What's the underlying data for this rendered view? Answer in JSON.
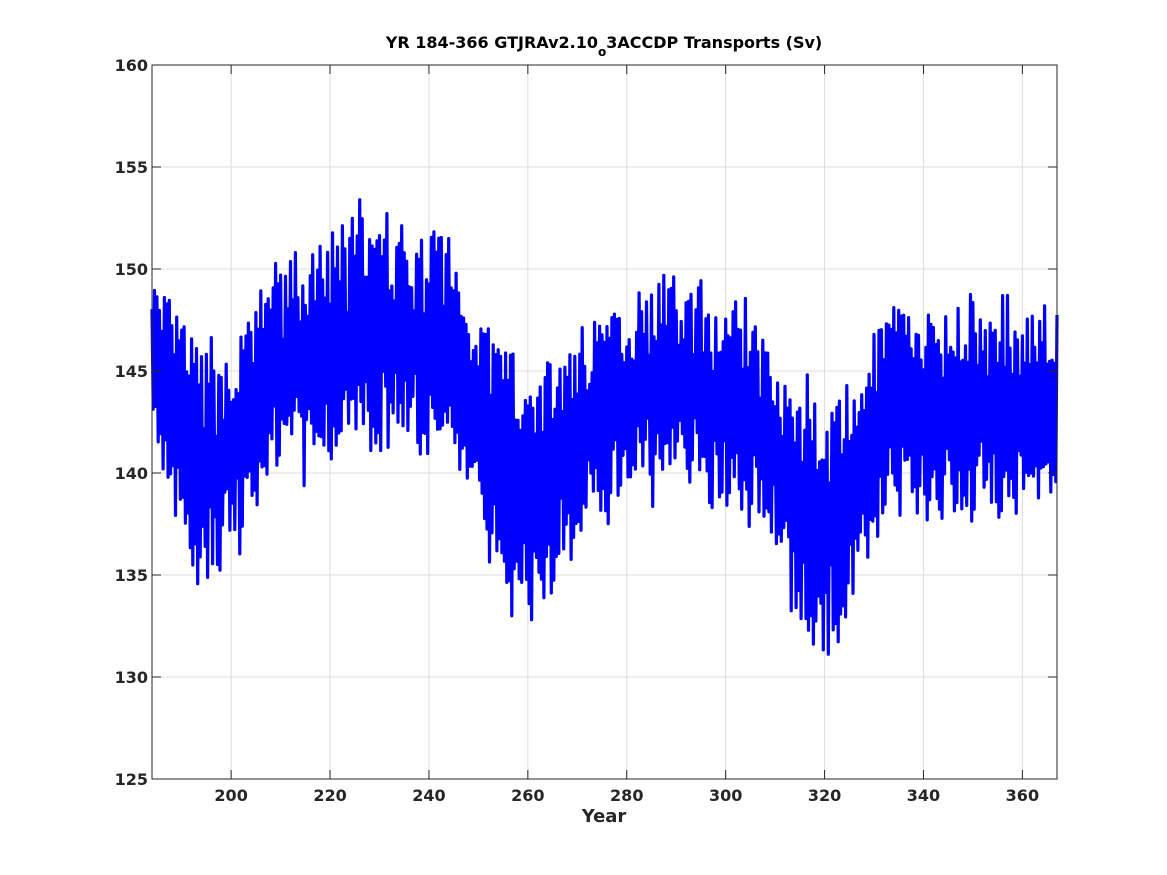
{
  "chart_data": {
    "type": "line",
    "title_main": "YR 184-366 GTJRAv2.10",
    "title_sub": "o",
    "title_rest": "3ACCDP Transports (Sv)",
    "xlabel": "Year",
    "ylabel": "",
    "xlim": [
      184,
      367
    ],
    "ylim": [
      125,
      160
    ],
    "xticks": [
      200,
      220,
      240,
      260,
      280,
      300,
      320,
      340,
      360
    ],
    "yticks": [
      125,
      130,
      135,
      140,
      145,
      150,
      155,
      160
    ],
    "grid": true,
    "line_color": "#0000ff",
    "series": [
      {
        "x": [
          184,
          186,
          188,
          190,
          192,
          194,
          196,
          198,
          200,
          202,
          204,
          206,
          208,
          210,
          212,
          214,
          216,
          218,
          220,
          222,
          224,
          226,
          228,
          230,
          232,
          234,
          236,
          238,
          240,
          242,
          244,
          246,
          248,
          250,
          252,
          254,
          256,
          258,
          260,
          262,
          264,
          266,
          268,
          270,
          272,
          274,
          276,
          278,
          280,
          282,
          284,
          286,
          288,
          290,
          292,
          294,
          296,
          298,
          300,
          302,
          304,
          306,
          308,
          310,
          312,
          314,
          316,
          318,
          320,
          322,
          324,
          326,
          328,
          330,
          332,
          334,
          336,
          338,
          340,
          342,
          344,
          346,
          348,
          350,
          352,
          354,
          356,
          358,
          360,
          362,
          364,
          366,
          367
        ],
        "values": [
          146.0,
          144.0,
          143.0,
          142.5,
          141.0,
          139.5,
          140.5,
          140.0,
          141.0,
          141.5,
          143.0,
          144.0,
          145.0,
          145.0,
          145.5,
          145.5,
          145.0,
          146.0,
          146.0,
          146.5,
          146.5,
          147.5,
          147.0,
          146.5,
          147.0,
          147.0,
          146.0,
          146.5,
          146.0,
          147.0,
          146.0,
          145.0,
          144.0,
          143.5,
          142.0,
          141.0,
          139.5,
          140.0,
          139.0,
          139.0,
          139.5,
          140.5,
          141.0,
          141.5,
          142.5,
          143.0,
          143.0,
          143.5,
          143.5,
          144.0,
          144.0,
          144.5,
          144.0,
          144.5,
          144.0,
          144.5,
          144.0,
          143.5,
          143.5,
          144.0,
          143.0,
          142.5,
          142.0,
          141.0,
          140.0,
          139.0,
          138.0,
          137.5,
          137.0,
          137.5,
          138.0,
          139.0,
          140.0,
          141.5,
          142.5,
          143.0,
          143.0,
          143.0,
          142.5,
          143.0,
          142.5,
          143.0,
          143.0,
          143.5,
          143.0,
          142.5,
          143.0,
          143.0,
          143.0,
          143.0,
          143.5,
          143.0,
          143.0
        ],
        "amplitude": [
          4.0,
          4.5,
          5.0,
          5.5,
          6.0,
          6.5,
          6.0,
          5.5,
          5.5,
          5.0,
          5.0,
          5.0,
          5.5,
          5.0,
          5.0,
          5.5,
          5.0,
          5.5,
          5.5,
          5.5,
          5.5,
          6.0,
          5.5,
          5.5,
          5.5,
          5.5,
          5.5,
          5.5,
          5.5,
          5.5,
          5.5,
          5.0,
          5.0,
          5.0,
          5.5,
          6.0,
          6.5,
          6.5,
          6.5,
          6.5,
          6.0,
          5.5,
          5.5,
          5.5,
          5.0,
          5.0,
          5.5,
          5.0,
          5.0,
          5.0,
          5.5,
          5.5,
          5.5,
          5.0,
          5.0,
          5.0,
          5.0,
          5.0,
          5.0,
          5.5,
          5.5,
          5.0,
          5.0,
          5.0,
          5.5,
          6.0,
          6.5,
          6.5,
          6.5,
          6.0,
          6.0,
          5.5,
          5.5,
          5.5,
          5.5,
          5.0,
          5.0,
          5.0,
          5.0,
          5.5,
          5.5,
          5.5,
          5.5,
          5.5,
          5.0,
          5.5,
          5.5,
          5.0,
          5.0,
          5.5,
          5.5,
          5.0,
          5.0
        ]
      }
    ]
  }
}
